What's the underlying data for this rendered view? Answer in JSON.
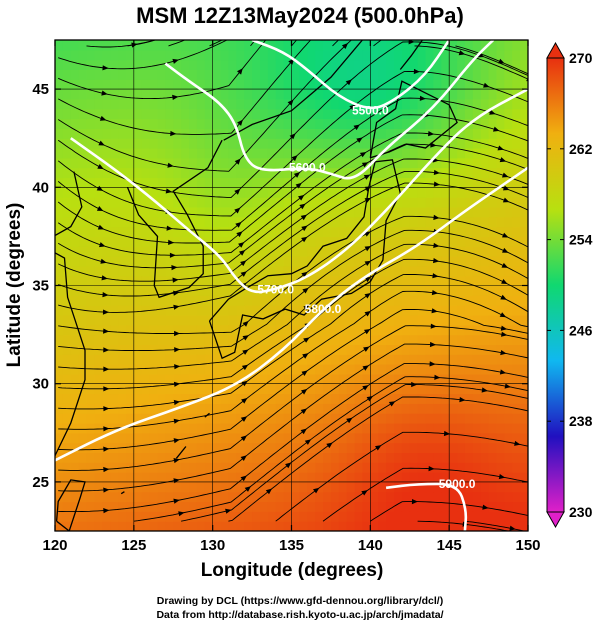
{
  "title": "MSM 12Z13May2024 (500.0hPa)",
  "credits": {
    "line1": "Drawing by DCL (https://www.gfd-dennou.org/library/dcl/)",
    "line2": "Data from http://database.rish.kyoto-u.ac.jp/arch/jmadata/"
  },
  "chart_data": {
    "type": "heatmap",
    "title": "MSM 12Z13May2024 (500.0hPa)",
    "xlabel": "Longitude (degrees)",
    "ylabel": "Latitude  (degrees)",
    "xlim": [
      120,
      150
    ],
    "ylim": [
      22.5,
      47.5
    ],
    "x_ticks": [
      120,
      125,
      130,
      135,
      140,
      145,
      150
    ],
    "y_ticks": [
      25,
      30,
      35,
      40,
      45
    ],
    "x_tick_labels": [
      "120",
      "125",
      "130",
      "135",
      "140",
      "145",
      "150"
    ],
    "y_tick_labels": [
      "25",
      "30",
      "35",
      "40",
      "45"
    ],
    "grid": true,
    "colorbar": {
      "range": [
        230,
        270
      ],
      "ticks": [
        230,
        238,
        246,
        254,
        262,
        270
      ],
      "tick_labels": [
        "230",
        "238",
        "246",
        "254",
        "262",
        "270"
      ],
      "colors": [
        "#e020c8",
        "#2010c0",
        "#10b8f0",
        "#10d870",
        "#b8e010",
        "#f0b010",
        "#e83010"
      ]
    },
    "contours": [
      {
        "label": "5900.0",
        "points": [
          [
            141.0,
            24.7
          ],
          [
            143.0,
            24.9
          ],
          [
            145.5,
            24.9
          ],
          [
            146.1,
            23.6
          ],
          [
            146.0,
            22.5
          ]
        ]
      },
      {
        "label": "5800.0",
        "points": [
          [
            120.0,
            26.1
          ],
          [
            124.0,
            27.7
          ],
          [
            128.0,
            28.8
          ],
          [
            131.5,
            29.9
          ],
          [
            134.5,
            31.7
          ],
          [
            137.0,
            33.8
          ],
          [
            139.5,
            35.4
          ],
          [
            143.0,
            37.0
          ],
          [
            146.0,
            38.8
          ],
          [
            150.0,
            41.0
          ]
        ]
      },
      {
        "label": "5700.0",
        "points": [
          [
            121.0,
            42.5
          ],
          [
            124.0,
            40.8
          ],
          [
            126.5,
            39.2
          ],
          [
            128.5,
            37.8
          ],
          [
            130.5,
            36.5
          ],
          [
            131.5,
            35.3
          ],
          [
            132.5,
            34.6
          ],
          [
            134.0,
            34.8
          ],
          [
            136.0,
            35.4
          ],
          [
            138.5,
            36.8
          ],
          [
            141.0,
            38.8
          ],
          [
            144.0,
            41.5
          ],
          [
            146.5,
            43.5
          ],
          [
            150.0,
            45.0
          ]
        ]
      },
      {
        "label": "5600.0",
        "points": [
          [
            127.0,
            46.3
          ],
          [
            128.5,
            45.4
          ],
          [
            130.5,
            44.3
          ],
          [
            131.5,
            43.2
          ],
          [
            132.0,
            41.5
          ],
          [
            133.0,
            40.8
          ],
          [
            136.0,
            41.0
          ],
          [
            137.5,
            40.7
          ],
          [
            139.0,
            40.3
          ],
          [
            141.0,
            42.0
          ],
          [
            144.0,
            44.0
          ],
          [
            146.5,
            46.5
          ],
          [
            147.8,
            47.5
          ]
        ]
      },
      {
        "label": "5500.0",
        "points": [
          [
            132.5,
            47.5
          ],
          [
            134.5,
            46.9
          ],
          [
            136.0,
            46.0
          ],
          [
            138.0,
            44.6
          ],
          [
            140.0,
            43.9
          ],
          [
            141.5,
            44.4
          ],
          [
            143.5,
            45.7
          ],
          [
            145.0,
            47.5
          ]
        ]
      }
    ],
    "streamline_jet_axis": [
      [
        120.0,
        31.5
      ],
      [
        126.0,
        32.8
      ],
      [
        132.0,
        34.8
      ],
      [
        136.0,
        36.0
      ],
      [
        140.0,
        38.0
      ],
      [
        144.0,
        40.8
      ],
      [
        150.0,
        45.0
      ]
    ],
    "trough_axis": [
      [
        128.5,
        47.5
      ],
      [
        130.0,
        41.5
      ],
      [
        133.0,
        37.5
      ],
      [
        135.0,
        33.0
      ]
    ]
  }
}
